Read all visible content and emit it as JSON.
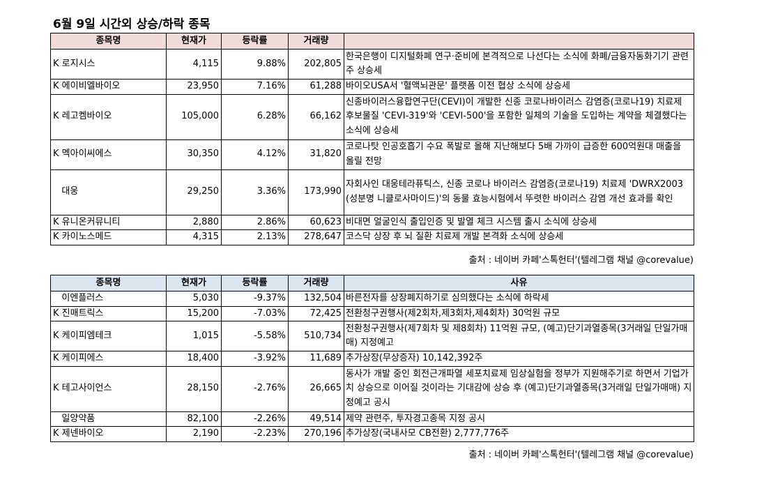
{
  "title": "6월 9일  시간외 상승/하락 종목",
  "rise_table": {
    "headers": [
      "종목명",
      "현재가",
      "등락률",
      "거래량",
      ""
    ],
    "rows": [
      {
        "name": "K 로지시스",
        "price": "4,115",
        "change": "9.88%",
        "volume": "202,805",
        "reason": "한국은행이 디지털화폐 연구·준비에 본격적으로 나선다는 소식에 화폐/금융자동화기기 관련주 상승세"
      },
      {
        "name": "K 에이비엘바이오",
        "price": "23,950",
        "change": "7.16%",
        "volume": "61,288",
        "reason": "바이오USA서 '혈액뇌관문' 플랫폼 이전 협상 소식에 상승세"
      },
      {
        "name": "K 레고켐바이오",
        "price": "105,000",
        "change": "6.28%",
        "volume": "66,162",
        "reason": "신종바이러스융합연구단(CEVI)이 개발한 신종 코로나바이러스 감염증(코로나19) 치료제 후보물질 'CEVI-319'와 'CEVI-500'을 포함한 일체의 기술을 도입하는 계약을 체결했다는 소식에 상승세"
      },
      {
        "name": "K 멕아이씨에스",
        "price": "30,350",
        "change": "4.12%",
        "volume": "31,820",
        "reason": "코로나탓 인공호흡기 수요 폭발로 올해 지난해보다 5배 가까이 급증한 600억원대 매출을 올릴 전망"
      },
      {
        "name": "   대웅",
        "price": "29,250",
        "change": "3.36%",
        "volume": "173,990",
        "reason": "자회사인 대웅테라퓨틱스, 신종 코로나 바이러스 감염증(코로나19) 치료제 'DWRX2003(성분명 니클로사마이드)'의 동물 효능시험에서 뚜렷한 바이러스 감염 개선 효과를 확인"
      },
      {
        "name": "K 유니온커뮤니티",
        "price": "2,880",
        "change": "2.86%",
        "volume": "60,623",
        "reason": "비대면 얼굴인식 출입인증 및 발열 체크 시스템 출시 소식에 상승세"
      },
      {
        "name": "K 카이노스메드",
        "price": "4,315",
        "change": "2.13%",
        "volume": "278,647",
        "reason": "코스닥 상장 후 뇌 질환 치료제 개발 본격화 소식에 상승세"
      }
    ]
  },
  "fall_table": {
    "headers": [
      "종목명",
      "현재가",
      "등락률",
      "거래량",
      "사유"
    ],
    "rows": [
      {
        "name": "   이엔플러스",
        "price": "5,030",
        "change": "-9.37%",
        "volume": "132,504",
        "reason": "바른전자를 상장폐지하기로 심의했다는 소식에 하락세"
      },
      {
        "name": "K 진매트릭스",
        "price": "15,200",
        "change": "-7.03%",
        "volume": "72,425",
        "reason": "전환청구권행사(제2회차,제3회차,제4회차) 30억원 규모"
      },
      {
        "name": "K 케이피엠테크",
        "price": "1,015",
        "change": "-5.58%",
        "volume": "510,734",
        "reason": "전환청구권행사(제7회차 및 제8회차) 11억원 규모, (예고)단기과열종목(3거래일 단일가매매) 지정예고"
      },
      {
        "name": "K 케이피에스",
        "price": "18,400",
        "change": "-3.92%",
        "volume": "11,689",
        "reason": "추가상장(무상증자) 10,142,392주"
      },
      {
        "name": "K 테고사이언스",
        "price": "28,150",
        "change": "-2.76%",
        "volume": "26,665",
        "reason": "동사가 개발 중인 회전근개파열 세포치료제 임상실험을 정부가 지원해주기로 하면서 기업가치 상승으로 이어질 것이라는 기대감에 상승 후 (예고)단기과열종목(3거래일 단일가매매) 지정예고 공시"
      },
      {
        "name": "   일양약품",
        "price": "82,100",
        "change": "-2.26%",
        "volume": "49,514",
        "reason": "제약 관련주, 투자경고종목 지정 공시"
      },
      {
        "name": "K 제넨바이오",
        "price": "2,190",
        "change": "-2.23%",
        "volume": "270,196",
        "reason": "추가상장(국내사모 CB전환) 2,777,776주"
      }
    ]
  },
  "source1": "출처 : 네이버 카페'스톡헌터'(텔레그램 채널 @corevalue)",
  "source2": "출처 : 네이버 카페'스톡헌터'(텔레그램 채널 @corevalue)"
}
